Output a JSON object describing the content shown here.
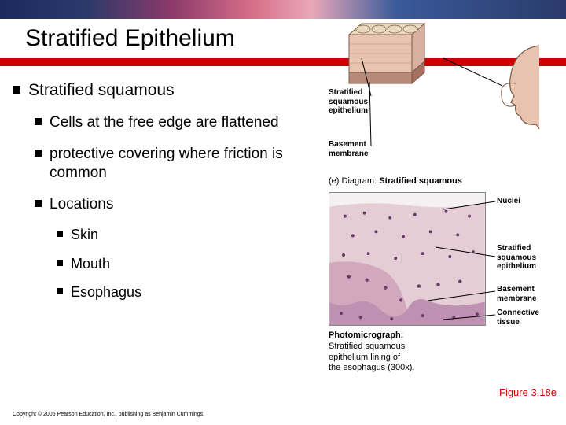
{
  "banner": {
    "gradient_colors": [
      "#1a2a5a",
      "#2a3a6a",
      "#8a3a6a",
      "#d8708a",
      "#e8a8b8",
      "#3a5a9a",
      "#2a3a6a"
    ]
  },
  "title": "Stratified Epithelium",
  "title_color": "#000000",
  "title_fontsize": 30,
  "red_stripe_color": "#cc0000",
  "bullets": {
    "level1": [
      {
        "text": "Stratified squamous"
      }
    ],
    "level2": [
      {
        "text": "Cells at the free edge are flattened"
      },
      {
        "text": "protective covering where friction is common"
      },
      {
        "text": "Locations"
      }
    ],
    "level3": [
      {
        "text": "Skin"
      },
      {
        "text": "Mouth"
      },
      {
        "text": "Esophagus"
      }
    ],
    "bullet_color": "#000000",
    "l1_fontsize": 21,
    "l2_fontsize": 19,
    "l3_fontsize": 18
  },
  "diagram_top": {
    "label1": "Stratified\nsquamous\nepithelium",
    "label2": "Basement\nmembrane",
    "caption_prefix": "(e) Diagram: ",
    "caption_bold": "Stratified squamous",
    "cube_colors": {
      "top": "#e8d8bc",
      "front": "#e8c4b0",
      "side": "#d8b0a0",
      "basal": "#b88878",
      "outline": "#7a5a48"
    },
    "face_color": "#e8c4b0",
    "face_outline": "#7a5a48"
  },
  "micrograph": {
    "bg": "#f5f0f2",
    "tissue_light": "#e5cdd6",
    "tissue_mid": "#d2a8bc",
    "tissue_dark": "#b078a0",
    "nuclei_color": "#6a3a6a",
    "label_nuclei": "Nuclei",
    "label_epithelium": "Stratified\nsquamous\nepithelium",
    "label_basement": "Basement\nmembrane",
    "label_connective": "Connective\ntissue",
    "caption_prefix": "Photomicrograph:",
    "caption_rest": "Stratified squamous\nepithelium lining of\nthe esophagus (300x)."
  },
  "figure_ref": "Figure 3.18e",
  "figure_ref_color": "#cc0000",
  "copyright": "Copyright © 2006 Pearson Education, Inc., publishing as Benjamin Cummings."
}
